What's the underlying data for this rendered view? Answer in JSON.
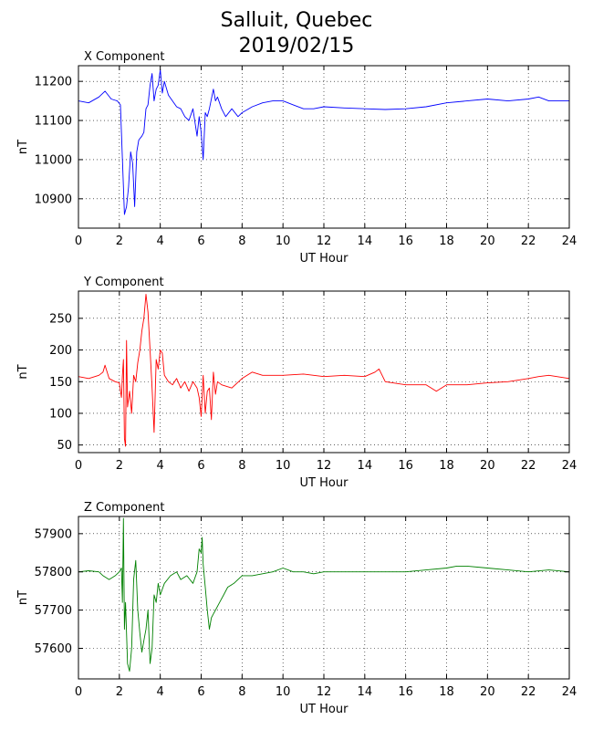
{
  "title_line1": "Salluit, Quebec",
  "title_line2": "2019/02/15",
  "chart_data": [
    {
      "type": "line",
      "title": "X Component",
      "xlabel": "UT Hour",
      "ylabel": "nT",
      "xlim": [
        0,
        24
      ],
      "ylim": [
        10825,
        11240
      ],
      "xticks": [
        0,
        2,
        4,
        6,
        8,
        10,
        12,
        14,
        16,
        18,
        20,
        22,
        24
      ],
      "yticks": [
        10900,
        11000,
        11100,
        11200
      ],
      "grid": true,
      "color": "#0000ff",
      "series": [
        {
          "x": [
            0,
            0.5,
            1.0,
            1.3,
            1.6,
            1.9,
            2.05,
            2.15,
            2.25,
            2.35,
            2.45,
            2.55,
            2.65,
            2.75,
            2.85,
            2.95,
            3.1,
            3.2,
            3.3,
            3.4,
            3.5,
            3.6,
            3.7,
            3.8,
            3.9,
            4.0,
            4.1,
            4.2,
            4.4,
            4.6,
            4.8,
            5.0,
            5.2,
            5.4,
            5.6,
            5.8,
            5.9,
            6.0,
            6.1,
            6.2,
            6.3,
            6.4,
            6.6,
            6.7,
            6.8,
            7.0,
            7.2,
            7.5,
            7.8,
            8.0,
            8.5,
            9.0,
            9.5,
            10.0,
            10.5,
            11.0,
            11.5,
            12.0,
            13.0,
            14.0,
            15.0,
            16.0,
            17.0,
            18.0,
            19.0,
            20.0,
            21.0,
            22.0,
            22.5,
            23.0,
            24.0
          ],
          "values": [
            11150,
            11145,
            11160,
            11175,
            11155,
            11150,
            11140,
            11000,
            10860,
            10880,
            10930,
            11020,
            10990,
            10880,
            11020,
            11050,
            11060,
            11070,
            11130,
            11140,
            11190,
            11220,
            11150,
            11180,
            11190,
            11230,
            11170,
            11200,
            11165,
            11150,
            11135,
            11130,
            11110,
            11100,
            11130,
            11060,
            11110,
            11070,
            11000,
            11120,
            11110,
            11130,
            11180,
            11150,
            11160,
            11130,
            11110,
            11130,
            11110,
            11120,
            11135,
            11145,
            11150,
            11150,
            11140,
            11130,
            11130,
            11135,
            11132,
            11130,
            11128,
            11130,
            11135,
            11145,
            11150,
            11155,
            11150,
            11155,
            11160,
            11150,
            11150
          ]
        }
      ]
    },
    {
      "type": "line",
      "title": "Y Component",
      "xlabel": "UT Hour",
      "ylabel": "nT",
      "xlim": [
        0,
        24
      ],
      "ylim": [
        38,
        293
      ],
      "xticks": [
        0,
        2,
        4,
        6,
        8,
        10,
        12,
        14,
        16,
        18,
        20,
        22,
        24
      ],
      "yticks": [
        50,
        100,
        150,
        200,
        250
      ],
      "grid": true,
      "color": "#ff0000",
      "series": [
        {
          "x": [
            0,
            0.5,
            1.0,
            1.2,
            1.3,
            1.5,
            1.8,
            2.0,
            2.1,
            2.15,
            2.2,
            2.25,
            2.3,
            2.35,
            2.4,
            2.5,
            2.6,
            2.7,
            2.8,
            2.9,
            3.0,
            3.1,
            3.2,
            3.3,
            3.4,
            3.5,
            3.6,
            3.7,
            3.8,
            3.9,
            4.0,
            4.1,
            4.2,
            4.4,
            4.6,
            4.8,
            5.0,
            5.2,
            5.4,
            5.6,
            5.8,
            5.9,
            6.0,
            6.1,
            6.2,
            6.3,
            6.4,
            6.5,
            6.6,
            6.7,
            6.8,
            7.0,
            7.5,
            8.0,
            8.5,
            9.0,
            10.0,
            11.0,
            12.0,
            13.0,
            14.0,
            14.5,
            14.7,
            15.0,
            16.0,
            17.0,
            17.5,
            18.0,
            19.0,
            20.0,
            21.0,
            22.0,
            22.5,
            23.0,
            24.0
          ],
          "values": [
            158,
            155,
            160,
            165,
            176,
            155,
            150,
            148,
            125,
            160,
            185,
            60,
            48,
            215,
            110,
            135,
            100,
            160,
            150,
            180,
            200,
            230,
            250,
            288,
            260,
            200,
            140,
            70,
            185,
            170,
            200,
            195,
            160,
            150,
            145,
            155,
            140,
            150,
            135,
            150,
            140,
            125,
            95,
            160,
            100,
            135,
            140,
            90,
            165,
            130,
            150,
            145,
            140,
            155,
            165,
            160,
            160,
            162,
            158,
            160,
            158,
            165,
            170,
            150,
            145,
            145,
            135,
            145,
            145,
            148,
            150,
            155,
            158,
            160,
            155
          ]
        }
      ]
    },
    {
      "type": "line",
      "title": "Z Component",
      "xlabel": "UT Hour",
      "ylabel": "nT",
      "xlim": [
        0,
        24
      ],
      "ylim": [
        57520,
        57945
      ],
      "xticks": [
        0,
        2,
        4,
        6,
        8,
        10,
        12,
        14,
        16,
        18,
        20,
        22,
        24
      ],
      "yticks": [
        57600,
        57700,
        57800,
        57900
      ],
      "grid": true,
      "color": "#008000",
      "series": [
        {
          "x": [
            0,
            0.5,
            1.0,
            1.2,
            1.5,
            1.8,
            2.0,
            2.1,
            2.15,
            2.2,
            2.25,
            2.3,
            2.4,
            2.5,
            2.6,
            2.7,
            2.8,
            2.9,
            3.0,
            3.1,
            3.2,
            3.3,
            3.4,
            3.5,
            3.6,
            3.7,
            3.8,
            3.9,
            4.0,
            4.2,
            4.5,
            4.8,
            5.0,
            5.3,
            5.6,
            5.8,
            5.9,
            6.0,
            6.05,
            6.1,
            6.2,
            6.3,
            6.4,
            6.5,
            6.6,
            6.7,
            6.9,
            7.1,
            7.3,
            7.6,
            8.0,
            8.5,
            9.0,
            9.5,
            10.0,
            10.5,
            11.0,
            11.5,
            12.0,
            13.0,
            14.0,
            15.0,
            16.0,
            17.0,
            18.0,
            18.5,
            19.0,
            20.0,
            21.0,
            22.0,
            23.0,
            24.0
          ],
          "values": [
            57800,
            57803,
            57800,
            57790,
            57780,
            57790,
            57800,
            57810,
            57720,
            57940,
            57650,
            57720,
            57560,
            57540,
            57600,
            57780,
            57830,
            57700,
            57640,
            57590,
            57620,
            57650,
            57700,
            57560,
            57600,
            57740,
            57720,
            57770,
            57740,
            57770,
            57790,
            57800,
            57780,
            57790,
            57770,
            57800,
            57860,
            57850,
            57890,
            57820,
            57760,
            57700,
            57650,
            57680,
            57690,
            57700,
            57720,
            57740,
            57760,
            57770,
            57790,
            57790,
            57795,
            57800,
            57810,
            57800,
            57800,
            57795,
            57800,
            57800,
            57800,
            57800,
            57800,
            57805,
            57810,
            57815,
            57815,
            57810,
            57805,
            57800,
            57805,
            57800
          ]
        }
      ]
    }
  ]
}
